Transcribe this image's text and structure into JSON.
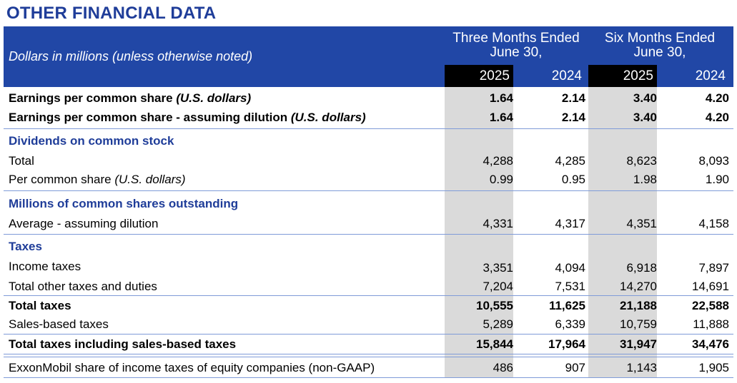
{
  "title": "OTHER FINANCIAL DATA",
  "header": {
    "units": "Dollars in millions (unless otherwise noted)",
    "three_months_line1": "Three Months Ended",
    "three_months_line2": "June 30,",
    "six_months_line1": "Six Months Ended",
    "six_months_line2": "June 30,",
    "years": [
      "2025",
      "2024",
      "2025",
      "2024"
    ]
  },
  "rows": [
    {
      "label": "Earnings per common share",
      "label_note": "(U.S. dollars)",
      "values": [
        "1.64",
        "2.14",
        "3.40",
        "4.20"
      ]
    },
    {
      "label": "Earnings per common share - assuming dilution",
      "label_note": "(U.S. dollars)",
      "values": [
        "1.64",
        "2.14",
        "3.40",
        "4.20"
      ]
    },
    {
      "label": "Dividends on common stock"
    },
    {
      "label": "Total",
      "values": [
        "4,288",
        "4,285",
        "8,623",
        "8,093"
      ]
    },
    {
      "label": "Per common share",
      "label_note": "(U.S. dollars)",
      "values": [
        "0.99",
        "0.95",
        "1.98",
        "1.90"
      ]
    },
    {
      "label": "Millions of common shares outstanding"
    },
    {
      "label": "Average - assuming dilution",
      "values": [
        "4,331",
        "4,317",
        "4,351",
        "4,158"
      ]
    },
    {
      "label": "Taxes"
    },
    {
      "label": "Income taxes",
      "values": [
        "3,351",
        "4,094",
        "6,918",
        "7,897"
      ]
    },
    {
      "label": "Total other taxes and duties",
      "values": [
        "7,204",
        "7,531",
        "14,270",
        "14,691"
      ]
    },
    {
      "label": "Total taxes",
      "values": [
        "10,555",
        "11,625",
        "21,188",
        "22,588"
      ]
    },
    {
      "label": "Sales-based taxes",
      "values": [
        "5,289",
        "6,339",
        "10,759",
        "11,888"
      ]
    },
    {
      "label": "Total taxes including sales-based taxes",
      "values": [
        "15,844",
        "17,964",
        "31,947",
        "34,476"
      ]
    },
    {
      "label": "ExxonMobil share of income taxes of equity companies (non-GAAP)",
      "values": [
        "486",
        "907",
        "1,143",
        "1,905"
      ]
    }
  ]
}
